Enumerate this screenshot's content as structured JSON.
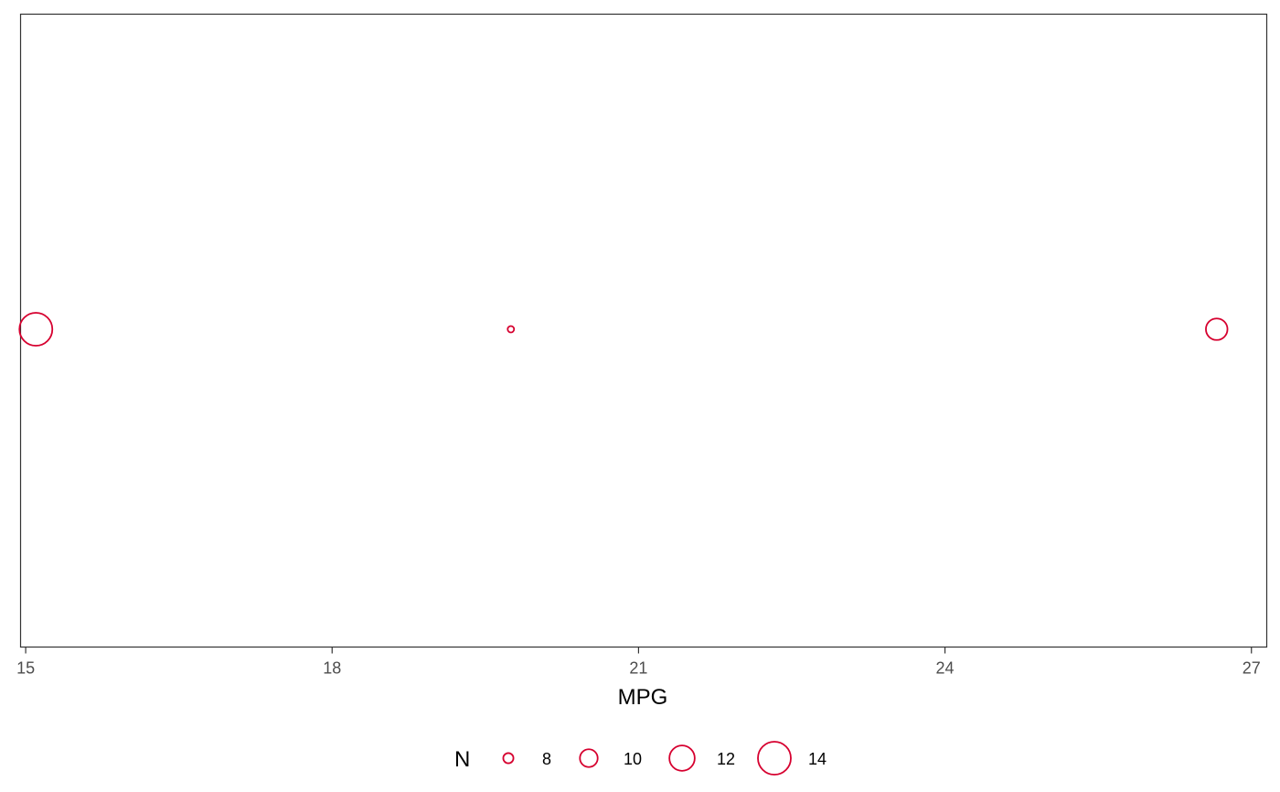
{
  "chart_data": {
    "type": "scatter",
    "title": "",
    "xlabel": "MPG",
    "ylabel": "",
    "xlim": [
      14.95,
      27.15
    ],
    "x_ticks": [
      "15",
      "18",
      "21",
      "24",
      "27"
    ],
    "grid": false,
    "points": [
      {
        "x": 15.1,
        "n": 14
      },
      {
        "x": 19.75,
        "n": 7
      },
      {
        "x": 26.66,
        "n": 11
      }
    ],
    "legend": {
      "title": "N",
      "placement": "bottom",
      "entries": [
        {
          "label": "8",
          "n": 8
        },
        {
          "label": "10",
          "n": 10
        },
        {
          "label": "12",
          "n": 12
        },
        {
          "label": "14",
          "n": 14
        }
      ]
    },
    "colors": {
      "point_stroke": "#d6002f",
      "panel_border": "#333333",
      "tick": "#333333",
      "tick_label": "#4d4d4d"
    }
  }
}
